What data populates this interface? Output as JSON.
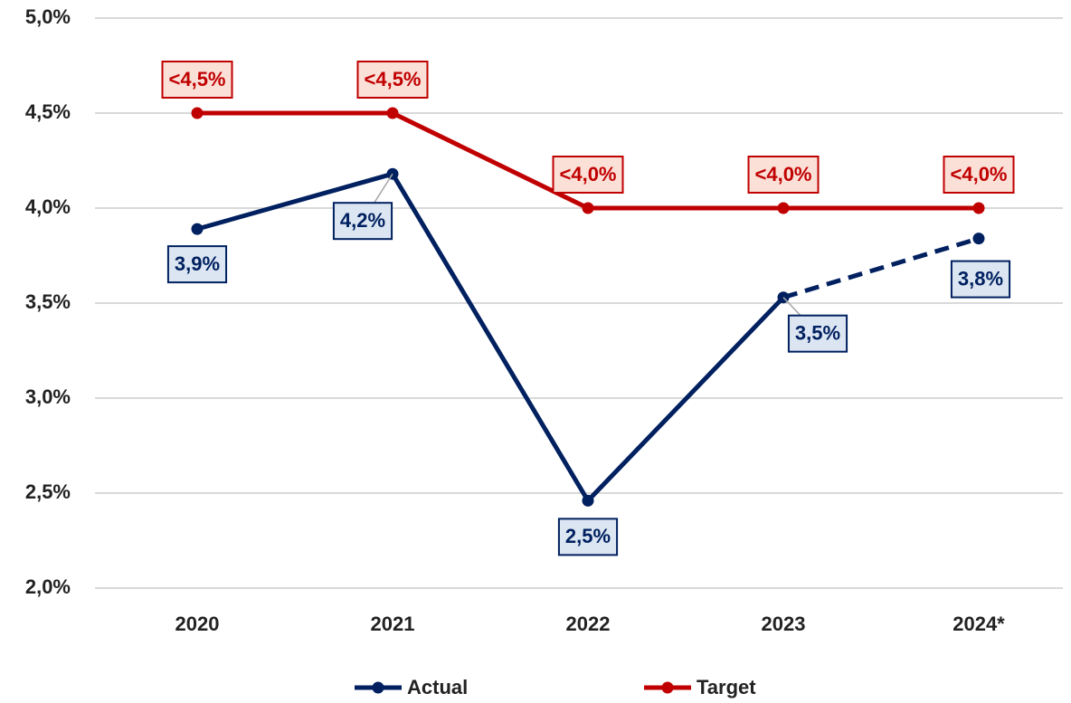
{
  "chart_data": {
    "type": "line",
    "categories": [
      "2020",
      "2021",
      "2022",
      "2023",
      "2024*"
    ],
    "series": [
      {
        "name": "Actual",
        "color": "#002060",
        "values": [
          3.89,
          4.18,
          2.46,
          3.53,
          3.84
        ],
        "value_labels": [
          "3,9%",
          "4,2%",
          "2,5%",
          "3,5%",
          "3,8%"
        ],
        "dashed_from": 3
      },
      {
        "name": "Target",
        "color": "#c00000",
        "values": [
          4.5,
          4.5,
          4.0,
          4.0,
          4.0
        ],
        "value_labels": [
          "<4,5%",
          "<4,5%",
          "<4,0%",
          "<4,0%",
          "<4,0%"
        ]
      }
    ],
    "ylim": [
      2.0,
      5.0
    ],
    "yticks": [
      {
        "value": 2.0,
        "label": "2,0%"
      },
      {
        "value": 2.5,
        "label": "2,5%"
      },
      {
        "value": 3.0,
        "label": "3,0%"
      },
      {
        "value": 3.5,
        "label": "3,5%"
      },
      {
        "value": 4.0,
        "label": "4,0%"
      },
      {
        "value": 4.5,
        "label": "4,5%"
      },
      {
        "value": 5.0,
        "label": "5,0%"
      }
    ],
    "grid": true,
    "legend": "bottom"
  }
}
